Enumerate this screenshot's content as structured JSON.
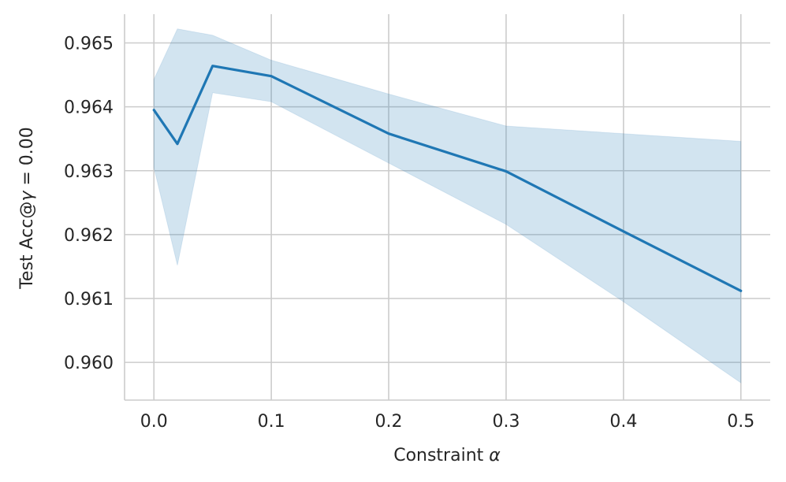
{
  "chart_data": {
    "type": "line",
    "xlabel": "Constraint",
    "xlabel_symbol": "α",
    "ylabel": "Test Acc@",
    "ylabel_symbol": "γ",
    "ylabel_suffix": " = 0.00",
    "x_ticks": [
      0.0,
      0.1,
      0.2,
      0.3,
      0.4,
      0.5
    ],
    "x_tick_labels": [
      "0.0",
      "0.1",
      "0.2",
      "0.3",
      "0.4",
      "0.5"
    ],
    "y_ticks": [
      0.96,
      0.961,
      0.962,
      0.963,
      0.964,
      0.965
    ],
    "y_tick_labels": [
      "0.960",
      "0.961",
      "0.962",
      "0.963",
      "0.964",
      "0.965"
    ],
    "xlim": [
      -0.025,
      0.525
    ],
    "ylim": [
      0.95941,
      0.96545
    ],
    "grid": true,
    "series": [
      {
        "x": [
          0.0,
          0.02,
          0.05,
          0.1,
          0.2,
          0.3,
          0.4,
          0.5
        ],
        "y": [
          0.96395,
          0.96342,
          0.96464,
          0.96448,
          0.96358,
          0.96299,
          0.96205,
          0.96112
        ],
        "lower": [
          0.96305,
          0.96152,
          0.96422,
          0.96408,
          0.96312,
          0.96216,
          0.96095,
          0.95968
        ],
        "upper": [
          0.96443,
          0.96522,
          0.96512,
          0.96473,
          0.9642,
          0.9637,
          0.96358,
          0.96346
        ],
        "color": "#1f77b4",
        "band_color": "#1f77b4"
      }
    ]
  }
}
